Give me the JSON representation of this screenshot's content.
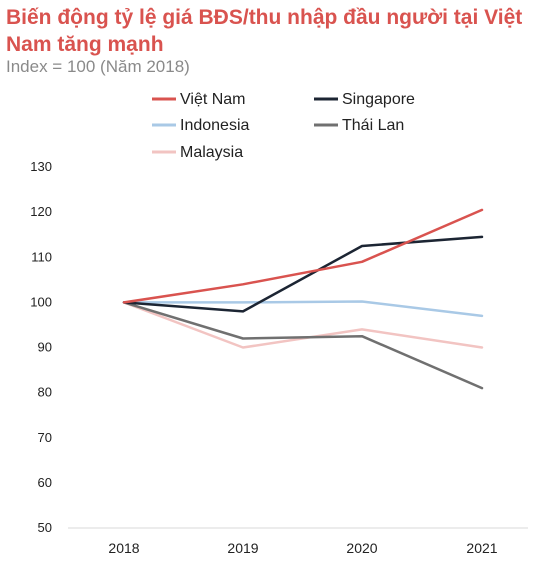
{
  "title": "Biến động tỷ lệ giá BĐS/thu nhập đầu người tại Việt Nam tăng mạnh",
  "subtitle": "Index = 100 (Năm 2018)",
  "chart_data": {
    "type": "line",
    "title": "Biến động tỷ lệ giá BĐS/thu nhập đầu người tại Việt Nam tăng mạnh",
    "subtitle": "Index = 100 (Năm 2018)",
    "xlabel": "",
    "ylabel": "",
    "categories": [
      "2018",
      "2019",
      "2020",
      "2021"
    ],
    "ylim": [
      50,
      130
    ],
    "yticks": [
      50,
      60,
      70,
      80,
      90,
      100,
      110,
      120,
      130
    ],
    "grid": false,
    "legend_position": "top",
    "series": [
      {
        "name": "Việt Nam",
        "color": "#d9534f",
        "values": [
          100,
          104,
          109,
          120.5
        ]
      },
      {
        "name": "Singapore",
        "color": "#1c2533",
        "values": [
          100,
          98,
          112.5,
          114.5
        ]
      },
      {
        "name": "Indonesia",
        "color": "#a9c9e6",
        "values": [
          100,
          100,
          100.2,
          97
        ]
      },
      {
        "name": "Thái Lan",
        "color": "#707070",
        "values": [
          100,
          92,
          92.5,
          81
        ]
      },
      {
        "name": "Malaysia",
        "color": "#f2c4c2",
        "values": [
          100,
          90,
          94,
          90
        ]
      }
    ]
  }
}
